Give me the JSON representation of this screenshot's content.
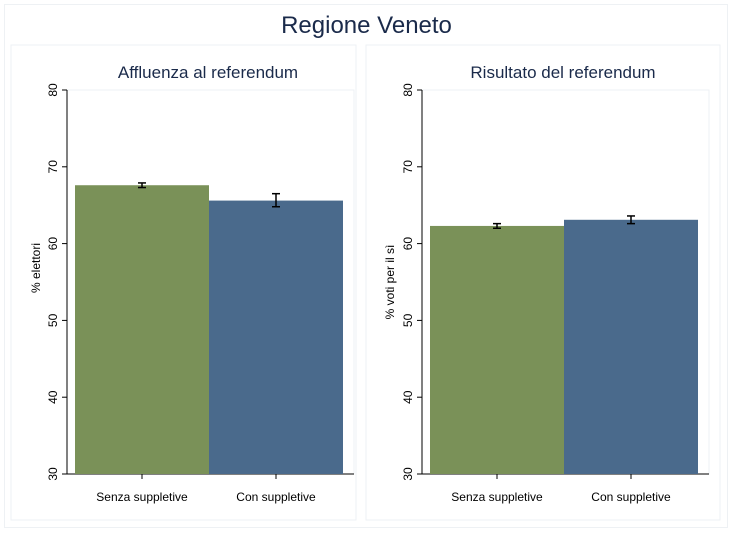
{
  "figure": {
    "title": "Regione Veneto"
  },
  "chart_data": [
    {
      "type": "bar",
      "title": "Affluenza al referendum",
      "xlabel": "",
      "ylabel": "% elettori",
      "ylim": [
        30,
        80
      ],
      "yticks": [
        30,
        40,
        50,
        60,
        70,
        80
      ],
      "categories": [
        "Senza suppletive",
        "Con suppletive"
      ],
      "values": [
        67.6,
        65.6
      ],
      "error_low": [
        67.3,
        64.8
      ],
      "error_high": [
        67.9,
        66.5
      ],
      "colors": [
        "#7a9158",
        "#4a6a8c"
      ],
      "grid": false,
      "legend": "none"
    },
    {
      "type": "bar",
      "title": "Risultato del referendum",
      "xlabel": "",
      "ylabel": "% voti per il sì",
      "ylim": [
        30,
        80
      ],
      "yticks": [
        30,
        40,
        50,
        60,
        70,
        80
      ],
      "categories": [
        "Senza suppletive",
        "Con suppletive"
      ],
      "values": [
        62.3,
        63.1
      ],
      "error_low": [
        62.0,
        62.6
      ],
      "error_high": [
        62.6,
        63.6
      ],
      "colors": [
        "#7a9158",
        "#4a6a8c"
      ],
      "grid": false,
      "legend": "none"
    }
  ]
}
